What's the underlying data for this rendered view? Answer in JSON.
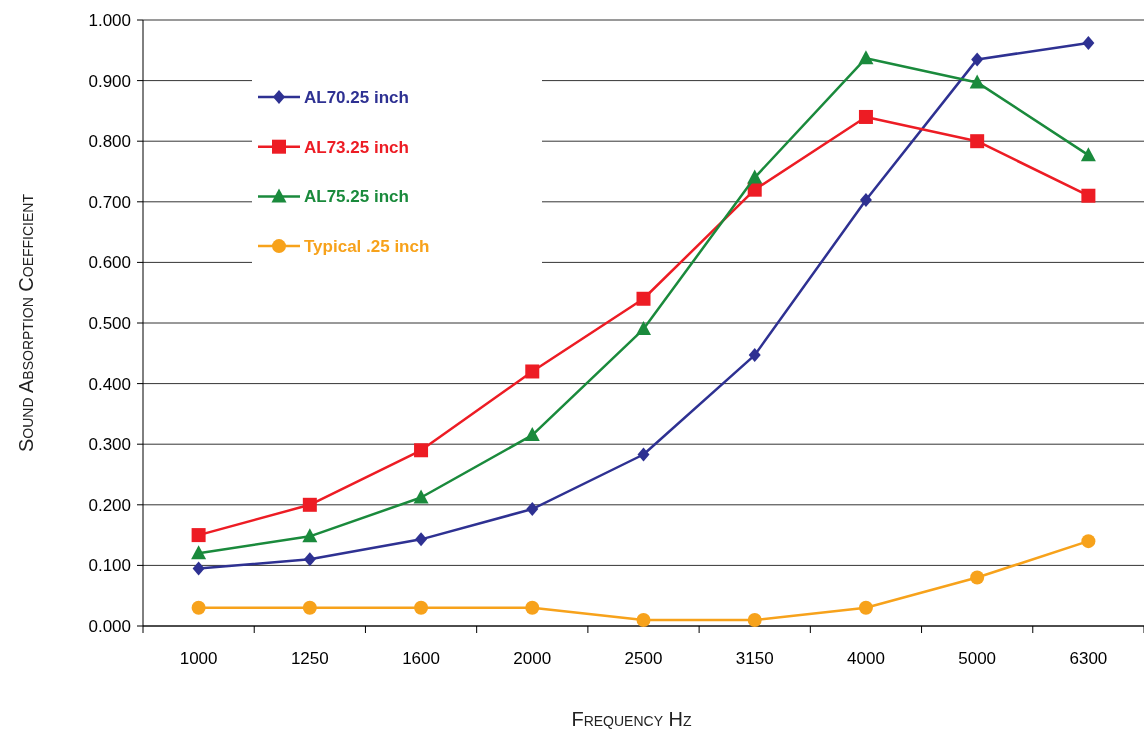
{
  "chart_data": {
    "type": "line",
    "xlabel": "Frequency Hz",
    "ylabel": "Sound Absorption Coefficient",
    "categories": [
      "1000",
      "1250",
      "1600",
      "2000",
      "2500",
      "3150",
      "4000",
      "5000",
      "6300"
    ],
    "ylim": [
      0,
      1
    ],
    "yticks": [
      {
        "value": 0,
        "label": "0.000"
      },
      {
        "value": 0.1,
        "label": "0.100"
      },
      {
        "value": 0.2,
        "label": "0.200"
      },
      {
        "value": 0.3,
        "label": "0.300"
      },
      {
        "value": 0.4,
        "label": "0.400"
      },
      {
        "value": 0.5,
        "label": "0.500"
      },
      {
        "value": 0.6,
        "label": "0.600"
      },
      {
        "value": 0.7,
        "label": "0.700"
      },
      {
        "value": 0.8,
        "label": "0.800"
      },
      {
        "value": 0.9,
        "label": "0.900"
      },
      {
        "value": 1,
        "label": "1.000"
      }
    ],
    "grid": "y",
    "legend": "top left",
    "line_style": "solid",
    "series": [
      {
        "name": "AL70.25 inch",
        "color": "#2e3192",
        "marker": "diamond",
        "values": [
          0.095,
          0.11,
          0.143,
          0.193,
          0.283,
          0.447,
          0.703,
          0.935,
          0.962
        ]
      },
      {
        "name": "AL73.25 inch",
        "color": "#ed1c24",
        "marker": "square",
        "values": [
          0.15,
          0.2,
          0.29,
          0.42,
          0.54,
          0.72,
          0.84,
          0.8,
          0.71
        ]
      },
      {
        "name": "AL75.25 inch",
        "color": "#1a8a3c",
        "marker": "triangle",
        "values": [
          0.12,
          0.148,
          0.212,
          0.315,
          0.49,
          0.74,
          0.937,
          0.897,
          0.777
        ]
      },
      {
        "name": "Typical .25 inch",
        "color": "#f7a21b",
        "marker": "circle",
        "values": [
          0.03,
          0.03,
          0.03,
          0.03,
          0.01,
          0.01,
          0.03,
          0.08,
          0.14
        ]
      }
    ]
  }
}
